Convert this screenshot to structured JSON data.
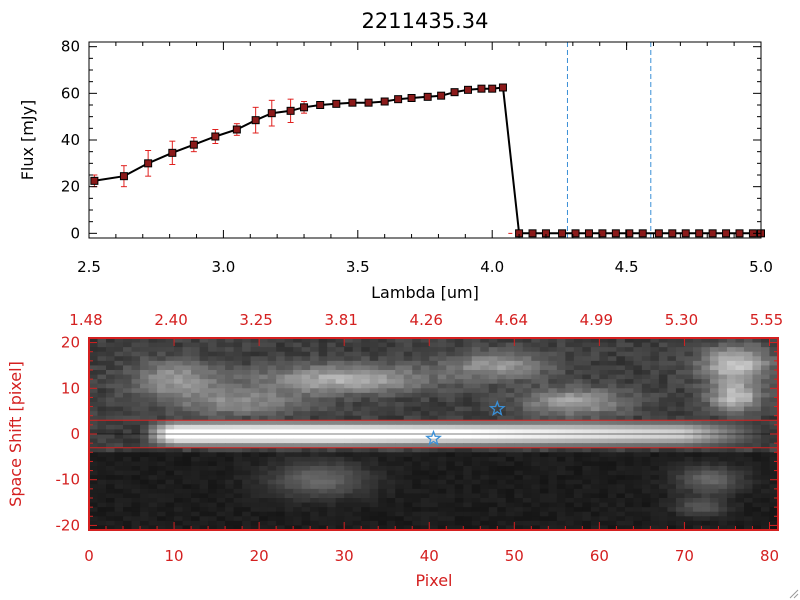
{
  "chart_data": [
    {
      "type": "line",
      "title": "2211435.34",
      "xlabel": "Lambda [um]",
      "ylabel": "Flux [mJy]",
      "xlim": [
        2.5,
        5.0
      ],
      "ylim": [
        -2,
        82
      ],
      "x_ticks": [
        "2.5",
        "3.0",
        "3.5",
        "4.0",
        "4.5",
        "5.0"
      ],
      "y_ticks": [
        "0",
        "20",
        "40",
        "60",
        "80"
      ],
      "colors": {
        "line": "#000000",
        "marker": "#8b1a1a",
        "errorbar": "#e0201e",
        "vline": "#3a8fd6",
        "zero_line": "#e0201e"
      },
      "series": [
        {
          "x": [
            2.52,
            2.63,
            2.72,
            2.81,
            2.89,
            2.97,
            3.05,
            3.12,
            3.18,
            3.25,
            3.3,
            3.36,
            3.42,
            3.48,
            3.54,
            3.6,
            3.65,
            3.7,
            3.76,
            3.81,
            3.86,
            3.91,
            3.96,
            4.0,
            4.04,
            4.1,
            4.15,
            4.2,
            4.26,
            4.31,
            4.36,
            4.41,
            4.46,
            4.51,
            4.56,
            4.62,
            4.67,
            4.72,
            4.77,
            4.82,
            4.87,
            4.92,
            4.97,
            5.0
          ],
          "y": [
            22.5,
            24.5,
            30,
            34.5,
            38,
            41.5,
            44.5,
            48.5,
            51.5,
            52.5,
            54,
            55,
            55.5,
            56,
            56,
            56.5,
            57.5,
            58,
            58.5,
            59,
            60.5,
            61.5,
            62,
            62,
            62.5,
            0,
            0,
            0,
            0,
            0,
            0,
            0,
            0,
            0,
            0,
            0,
            0,
            0,
            0,
            0,
            0,
            0,
            0,
            0
          ],
          "err": [
            2.5,
            4.5,
            5.5,
            5,
            3,
            3,
            2.5,
            5.5,
            5.5,
            5,
            2.5,
            1.5,
            1,
            0.8,
            0.8,
            0.8,
            0.8,
            0.8,
            0.8,
            0.8,
            0.8,
            0.8,
            0.8,
            0.8,
            0.8,
            0.5,
            0.5,
            0.5,
            0.5,
            0.5,
            0.5,
            0.5,
            0.5,
            0.5,
            0.5,
            0.5,
            0.5,
            0.5,
            0.5,
            0.5,
            0.5,
            0.5,
            0.5,
            0.5
          ]
        }
      ],
      "vlines": [
        4.28,
        4.59
      ]
    },
    {
      "type": "heatmap",
      "xlabel": "Pixel",
      "ylabel": "Space Shift [pixel]",
      "xlim": [
        0,
        81
      ],
      "ylim": [
        -21,
        21
      ],
      "x_ticks": [
        "0",
        "10",
        "20",
        "30",
        "40",
        "50",
        "60",
        "70",
        "80"
      ],
      "y_ticks": [
        "-20",
        "-10",
        "0",
        "10",
        "20"
      ],
      "top_ticks": [
        "1.48",
        "2.40",
        "3.25",
        "3.81",
        "4.26",
        "4.64",
        "4.99",
        "5.30",
        "5.55"
      ],
      "colors": {
        "frame": "#d42020",
        "hline": "#d42020",
        "star": "#3a8fd6"
      },
      "hlines": [
        3,
        -3
      ],
      "stars": [
        {
          "x": 48,
          "y": 5.5
        },
        {
          "x": 40.5,
          "y": -1
        }
      ]
    }
  ]
}
